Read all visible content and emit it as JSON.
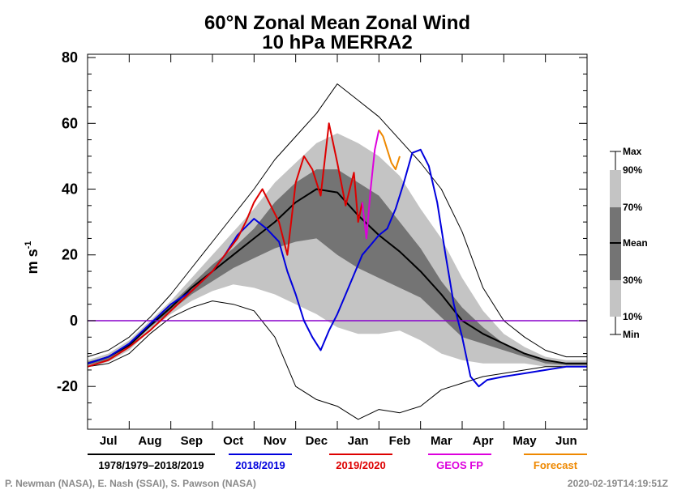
{
  "title_line1": "60°N Zonal Mean Zonal Wind",
  "title_line2": "10 hPa   MERRA2",
  "ylabel_base": "m s",
  "ylabel_sup": "-1",
  "credit_left": "P. Newman (NASA), E. Nash (SSAI), S. Pawson (NASA)",
  "credit_right": "2020-02-19T14:19:51Z",
  "key_labels": {
    "max": "Max",
    "p90": "90%",
    "p70": "70%",
    "mean": "Mean",
    "p30": "30%",
    "p10": "10%",
    "min": "Min"
  },
  "legend": [
    {
      "name": "1978/1979–2018/2019",
      "color": "#000000"
    },
    {
      "name": "2018/2019",
      "color": "#0000dd"
    },
    {
      "name": "2019/2020",
      "color": "#dd0000"
    },
    {
      "name": "GEOS FP",
      "color": "#dd00dd"
    },
    {
      "name": "Forecast",
      "color": "#ee8800"
    }
  ],
  "colors": {
    "band_outer": "#c4c4c4",
    "band_mid": "#9e9e9e",
    "band_inner": "#747474",
    "zero_line": "#8800cc"
  },
  "chart_data": {
    "type": "line",
    "ylim": [
      -33,
      81
    ],
    "yticks": [
      -20,
      0,
      20,
      40,
      60,
      80
    ],
    "xlim": [
      0,
      12
    ],
    "months": [
      "Jul",
      "Aug",
      "Sep",
      "Oct",
      "Nov",
      "Dec",
      "Jan",
      "Feb",
      "Mar",
      "Apr",
      "May",
      "Jun"
    ],
    "grid": false,
    "climatology": {
      "x": [
        0,
        0.5,
        1,
        1.5,
        2,
        2.5,
        3,
        3.5,
        4,
        4.5,
        5,
        5.5,
        6,
        6.5,
        7,
        7.5,
        8,
        8.5,
        9,
        9.5,
        10,
        10.5,
        11,
        11.5,
        12
      ],
      "max": [
        -11,
        -9,
        -5,
        1,
        8,
        16,
        24,
        32,
        40,
        49,
        56,
        63,
        72,
        67,
        62,
        55,
        48,
        40,
        27,
        10,
        0,
        -5,
        -9,
        -11,
        -11
      ],
      "p90": [
        -12,
        -10,
        -6,
        0,
        6,
        13,
        20,
        27,
        34,
        42,
        48,
        54,
        57,
        54,
        50,
        44,
        34,
        25,
        13,
        3,
        -4,
        -8,
        -11,
        -12,
        -12
      ],
      "p70": [
        -12.5,
        -11,
        -7,
        -1,
        5,
        11,
        17,
        22,
        28,
        36,
        42,
        46,
        46,
        42,
        38,
        30,
        22,
        12,
        4,
        -2,
        -7,
        -10,
        -12,
        -13,
        -13
      ],
      "mean": [
        -13,
        -11,
        -7.5,
        -1.5,
        4,
        10,
        15,
        20,
        25,
        30,
        36,
        40,
        39,
        32,
        26,
        21,
        15,
        8,
        0,
        -4,
        -7,
        -10,
        -12,
        -13,
        -13
      ],
      "p30": [
        -13.5,
        -12,
        -8,
        -2,
        3,
        8,
        12,
        16,
        19,
        22,
        24,
        25,
        20,
        16,
        13,
        10,
        7,
        1,
        -5,
        -7,
        -9,
        -11,
        -13,
        -13.5,
        -13.5
      ],
      "p10": [
        -14,
        -12.5,
        -9,
        -3,
        2,
        6,
        9,
        11,
        10,
        8,
        5,
        2,
        -2,
        -4,
        -4,
        -3,
        -6,
        -10,
        -12,
        -13,
        -13,
        -13,
        -14,
        -14,
        -14
      ],
      "min": [
        -14,
        -13,
        -10,
        -4,
        1,
        4,
        6,
        5,
        3,
        -5,
        -20,
        -24,
        -26,
        -30,
        -27,
        -28,
        -26,
        -21,
        -19,
        -17,
        -16,
        -15,
        -14,
        -14,
        -14
      ]
    },
    "series": [
      {
        "name": "2018/2019",
        "x": [
          0,
          0.5,
          1,
          1.5,
          2,
          2.5,
          3,
          3.3,
          3.6,
          4,
          4.3,
          4.6,
          4.8,
          5,
          5.2,
          5.4,
          5.6,
          5.8,
          6,
          6.2,
          6.4,
          6.6,
          6.8,
          7,
          7.2,
          7.4,
          7.6,
          7.8,
          8,
          8.2,
          8.4,
          8.6,
          8.8,
          9,
          9.2,
          9.4,
          9.6,
          10,
          10.5,
          11,
          11.5,
          12
        ],
        "y": [
          -13,
          -11,
          -7,
          -1,
          5,
          9,
          15,
          20,
          26,
          31,
          28,
          24,
          15,
          8,
          0,
          -5,
          -9,
          -3,
          2,
          8,
          14,
          20,
          23,
          26,
          28,
          34,
          42,
          51,
          52,
          47,
          36,
          20,
          5,
          -5,
          -17,
          -20,
          -18,
          -17,
          -16,
          -15,
          -14,
          -14
        ]
      },
      {
        "name": "2019/2020",
        "x": [
          0,
          0.5,
          1,
          1.5,
          2,
          2.5,
          3,
          3.3,
          3.6,
          3.8,
          4,
          4.2,
          4.4,
          4.6,
          4.8,
          5,
          5.2,
          5.4,
          5.6,
          5.8,
          6,
          6.2,
          6.4,
          6.5,
          6.6
        ],
        "y": [
          -14,
          -12,
          -8,
          -3,
          3,
          9,
          15,
          20,
          25,
          30,
          36,
          40,
          35,
          30,
          20,
          42,
          50,
          46,
          38,
          60,
          48,
          35,
          45,
          30,
          36
        ]
      },
      {
        "name": "GEOS FP",
        "x": [
          6.6,
          6.7,
          6.8,
          6.9,
          7.0
        ],
        "y": [
          36,
          25,
          40,
          52,
          58
        ]
      },
      {
        "name": "Forecast",
        "x": [
          7.0,
          7.1,
          7.2,
          7.3,
          7.4,
          7.5
        ],
        "y": [
          58,
          56,
          52,
          48,
          46,
          50
        ]
      }
    ],
    "zero_line": 0
  }
}
